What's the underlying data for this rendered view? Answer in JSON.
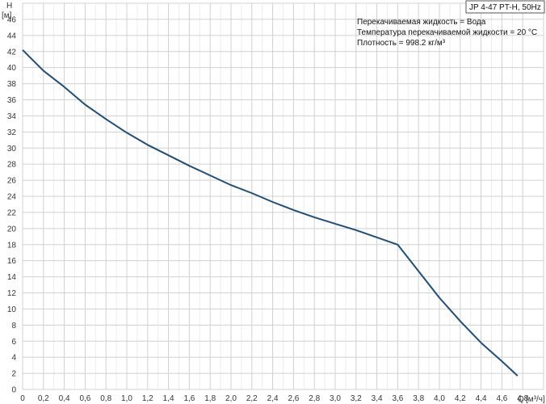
{
  "chart_data": {
    "type": "line",
    "title": "JP 4-47 PT-H, 50Hz",
    "ylabel_symbol": "H",
    "ylabel_unit": "[м]",
    "xlabel_symbol": "Q",
    "xlabel_unit": "[м³/ч]",
    "xlim": [
      0,
      5.0
    ],
    "ylim": [
      0,
      48
    ],
    "x_ticks": [
      "0",
      "0,2",
      "0,4",
      "0,6",
      "0,8",
      "1,0",
      "1,2",
      "1,4",
      "1,6",
      "1,8",
      "2,0",
      "2,2",
      "2,4",
      "2,6",
      "2,8",
      "3,0",
      "3,2",
      "3,4",
      "3,6",
      "3,8",
      "4,0",
      "4,2",
      "4,4",
      "4,6",
      "4,8"
    ],
    "y_ticks": [
      "0",
      "2",
      "4",
      "6",
      "8",
      "10",
      "12",
      "14",
      "16",
      "18",
      "20",
      "22",
      "24",
      "26",
      "28",
      "30",
      "32",
      "34",
      "36",
      "38",
      "40",
      "42",
      "44",
      "46"
    ],
    "grid": true,
    "annotations": [
      "Перекачиваемая жидкость = Вода",
      "Температура перекачиваемой жидкости = 20 °C",
      "Плотность = 998.2 кг/м³"
    ],
    "series": [
      {
        "color": "#1f4e79",
        "x": [
          0,
          0.2,
          0.4,
          0.6,
          0.8,
          1.0,
          1.2,
          1.4,
          1.6,
          1.8,
          2.0,
          2.2,
          2.4,
          2.6,
          2.8,
          3.0,
          3.2,
          3.4,
          3.6,
          3.8,
          4.0,
          4.2,
          4.4,
          4.6,
          4.75
        ],
        "y": [
          42.2,
          39.6,
          37.6,
          35.4,
          33.6,
          31.9,
          30.4,
          29.1,
          27.8,
          26.6,
          25.4,
          24.4,
          23.3,
          22.3,
          21.4,
          20.6,
          19.8,
          18.9,
          18.0,
          14.7,
          11.4,
          8.5,
          5.8,
          3.5,
          1.7
        ]
      }
    ]
  }
}
